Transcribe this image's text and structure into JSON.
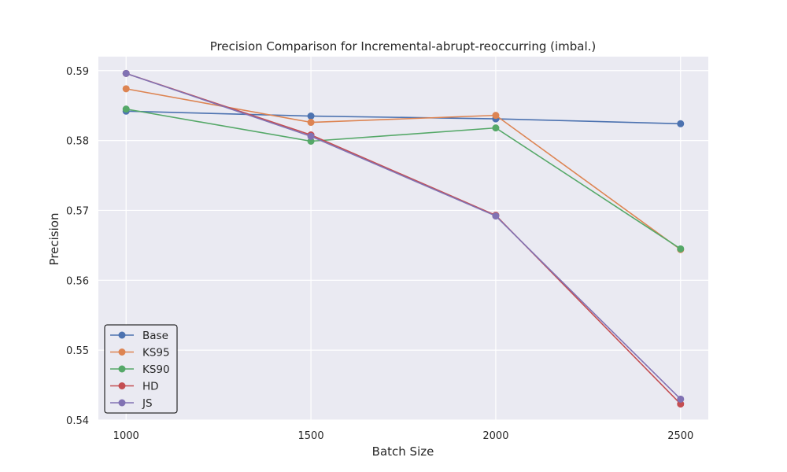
{
  "chart_data": {
    "type": "line",
    "title": "Precision Comparison for Incremental-abrupt-reoccurring (imbal.)",
    "xlabel": "Batch Size",
    "ylabel": "Precision",
    "x": [
      1000,
      1500,
      2000,
      2500
    ],
    "x_tick_labels": [
      "1000",
      "1500",
      "2000",
      "2500"
    ],
    "y_ticks": [
      0.54,
      0.55,
      0.56,
      0.57,
      0.58,
      0.59
    ],
    "y_tick_labels": [
      "0.54",
      "0.55",
      "0.56",
      "0.57",
      "0.58",
      "0.59"
    ],
    "xlim": [
      925,
      2575
    ],
    "ylim": [
      0.54,
      0.592
    ],
    "grid": true,
    "legend_position": "lower left",
    "series": [
      {
        "name": "Base",
        "color": "#4c72b0",
        "values": [
          0.5842,
          0.5835,
          0.5831,
          0.5824
        ]
      },
      {
        "name": "KS95",
        "color": "#dd8452",
        "values": [
          0.5874,
          0.5826,
          0.5836,
          0.5644
        ]
      },
      {
        "name": "KS90",
        "color": "#55a868",
        "values": [
          0.5845,
          0.5799,
          0.5818,
          0.5645
        ]
      },
      {
        "name": "HD",
        "color": "#c44e52",
        "values": [
          0.5896,
          0.5808,
          0.5693,
          0.5423
        ]
      },
      {
        "name": "JS",
        "color": "#8172b3",
        "values": [
          0.5896,
          0.5806,
          0.5692,
          0.543
        ]
      }
    ]
  }
}
